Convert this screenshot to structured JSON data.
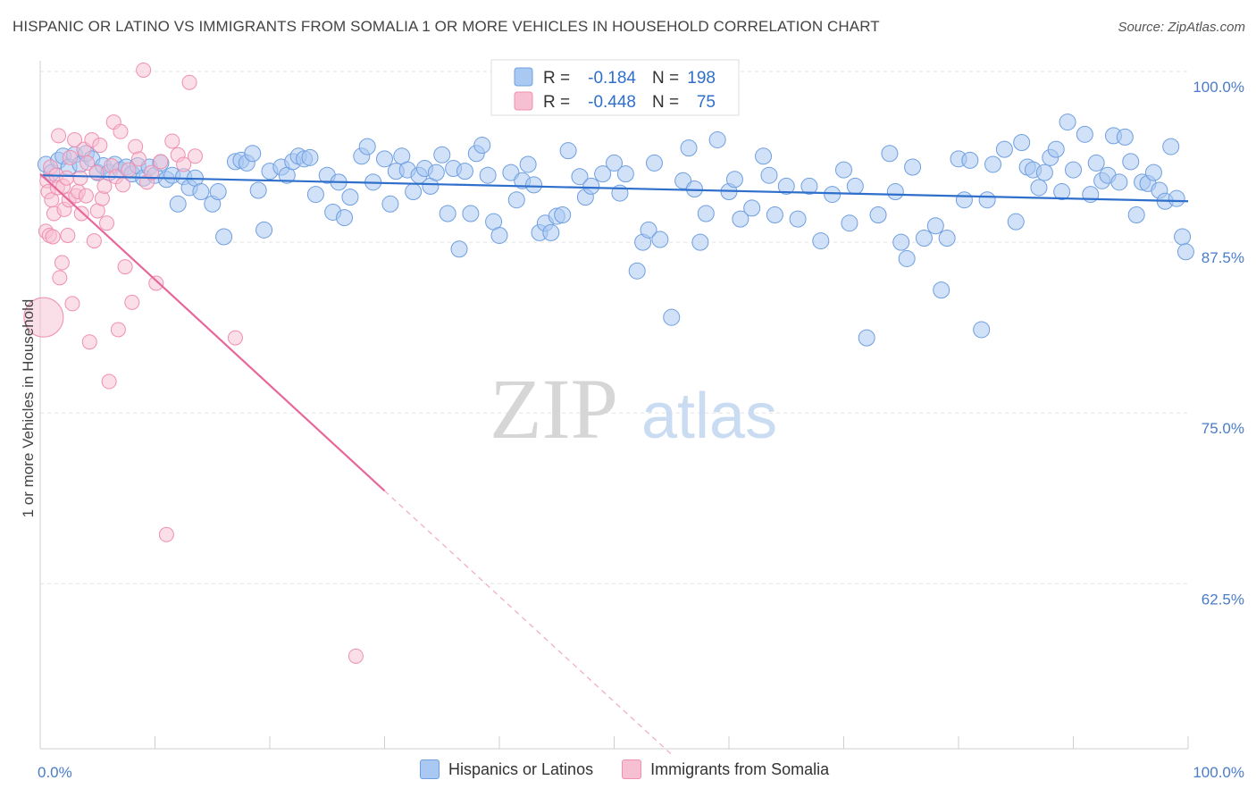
{
  "title": "HISPANIC OR LATINO VS IMMIGRANTS FROM SOMALIA 1 OR MORE VEHICLES IN HOUSEHOLD CORRELATION CHART",
  "source": "Source: ZipAtlas.com",
  "watermark": {
    "zip": "ZIP",
    "atlas": "atlas"
  },
  "colors": {
    "blue": "#6f9fe0",
    "blue_fill": "#a9c8f2",
    "blue_line": "#2f6fcc",
    "pink": "#f08fb0",
    "pink_fill": "#f7bfd2",
    "pink_line": "#e8679a",
    "axis_text": "#4a7cc9"
  },
  "legend": {
    "r_label": "R =",
    "n_label": "N =",
    "rows": [
      {
        "r": "-0.184",
        "n": "198"
      },
      {
        "r": "-0.448",
        "n": "75"
      }
    ]
  },
  "bottom_legend": [
    "Hispanics or Latinos",
    "Immigrants from Somalia"
  ],
  "chart_data": {
    "type": "scatter",
    "title": "HISPANIC OR LATINO VS IMMIGRANTS FROM SOMALIA 1 OR MORE VEHICLES IN HOUSEHOLD CORRELATION CHART",
    "xlabel": "",
    "ylabel": "1 or more Vehicles in Household",
    "xlim": [
      0,
      100
    ],
    "ylim": [
      50,
      101
    ],
    "x_tick_labels": [
      "0.0%",
      "100.0%"
    ],
    "y_ticks": [
      100.0,
      87.5,
      75.0,
      62.5
    ],
    "y_tick_labels": [
      "100.0%",
      "87.5%",
      "75.0%",
      "62.5%"
    ],
    "grid": true,
    "legend_position": "top-center",
    "series": [
      {
        "name": "Hispanics or Latinos",
        "R": -0.184,
        "N": 198,
        "trend": {
          "x": [
            0,
            100
          ],
          "y": [
            92.4,
            90.5
          ]
        },
        "points": [
          [
            0.5,
            93.2
          ],
          [
            1.0,
            92.6
          ],
          [
            1.6,
            93.5
          ],
          [
            2.0,
            93.8
          ],
          [
            2.5,
            93.0
          ],
          [
            3.0,
            93.9
          ],
          [
            3.5,
            93.2
          ],
          [
            4.0,
            94.0
          ],
          [
            4.5,
            93.6
          ],
          [
            5.0,
            92.6
          ],
          [
            5.5,
            93.1
          ],
          [
            6.0,
            92.6
          ],
          [
            6.5,
            93.2
          ],
          [
            7.0,
            92.8
          ],
          [
            7.5,
            93.0
          ],
          [
            8.0,
            92.5
          ],
          [
            8.5,
            93.1
          ],
          [
            9.0,
            92.2
          ],
          [
            9.5,
            93.0
          ],
          [
            10.0,
            92.4
          ],
          [
            10.5,
            93.3
          ],
          [
            11.0,
            92.1
          ],
          [
            11.5,
            92.4
          ],
          [
            12.0,
            90.3
          ],
          [
            12.5,
            92.3
          ],
          [
            13.0,
            91.5
          ],
          [
            13.5,
            92.2
          ],
          [
            14.0,
            91.2
          ],
          [
            15.0,
            90.3
          ],
          [
            15.5,
            91.2
          ],
          [
            16.0,
            87.9
          ],
          [
            17.0,
            93.4
          ],
          [
            17.5,
            93.5
          ],
          [
            18.0,
            93.3
          ],
          [
            18.5,
            94.0
          ],
          [
            19.0,
            91.3
          ],
          [
            19.5,
            88.4
          ],
          [
            20.0,
            92.7
          ],
          [
            21.0,
            93.0
          ],
          [
            21.5,
            92.4
          ],
          [
            22.0,
            93.4
          ],
          [
            22.5,
            93.8
          ],
          [
            23.0,
            93.6
          ],
          [
            23.5,
            93.7
          ],
          [
            24.0,
            91.0
          ],
          [
            25.0,
            92.4
          ],
          [
            25.5,
            89.7
          ],
          [
            26.0,
            91.9
          ],
          [
            26.5,
            89.3
          ],
          [
            27.0,
            90.8
          ],
          [
            28.0,
            93.8
          ],
          [
            28.5,
            94.5
          ],
          [
            29.0,
            91.9
          ],
          [
            30.0,
            93.6
          ],
          [
            30.5,
            90.3
          ],
          [
            31.0,
            92.7
          ],
          [
            31.5,
            93.8
          ],
          [
            32.0,
            92.8
          ],
          [
            32.5,
            91.2
          ],
          [
            33.0,
            92.4
          ],
          [
            33.5,
            92.9
          ],
          [
            34.0,
            91.6
          ],
          [
            34.5,
            92.6
          ],
          [
            35.0,
            93.9
          ],
          [
            35.5,
            89.6
          ],
          [
            36.0,
            92.9
          ],
          [
            36.5,
            87.0
          ],
          [
            37.0,
            92.7
          ],
          [
            37.5,
            89.6
          ],
          [
            38.0,
            94.0
          ],
          [
            38.5,
            94.6
          ],
          [
            39.0,
            92.4
          ],
          [
            39.5,
            89.0
          ],
          [
            40.0,
            88.0
          ],
          [
            41.0,
            92.6
          ],
          [
            41.5,
            90.6
          ],
          [
            42.0,
            92.0
          ],
          [
            42.5,
            93.2
          ],
          [
            43.0,
            91.7
          ],
          [
            43.5,
            88.2
          ],
          [
            44.0,
            88.9
          ],
          [
            44.5,
            88.2
          ],
          [
            45.0,
            89.4
          ],
          [
            45.5,
            89.5
          ],
          [
            46.0,
            94.2
          ],
          [
            47.0,
            92.3
          ],
          [
            47.5,
            90.8
          ],
          [
            48.0,
            91.6
          ],
          [
            49.0,
            92.5
          ],
          [
            50.0,
            93.3
          ],
          [
            50.5,
            91.1
          ],
          [
            51.0,
            92.5
          ],
          [
            52.0,
            85.4
          ],
          [
            52.5,
            87.5
          ],
          [
            53.0,
            88.4
          ],
          [
            53.5,
            93.3
          ],
          [
            54.0,
            87.7
          ],
          [
            55.0,
            82.0
          ],
          [
            56.0,
            92.0
          ],
          [
            56.5,
            94.4
          ],
          [
            57.0,
            91.4
          ],
          [
            57.5,
            87.5
          ],
          [
            58.0,
            89.6
          ],
          [
            59.0,
            95.0
          ],
          [
            60.0,
            91.2
          ],
          [
            60.5,
            92.1
          ],
          [
            61.0,
            89.2
          ],
          [
            62.0,
            90.0
          ],
          [
            63.0,
            93.8
          ],
          [
            63.5,
            92.4
          ],
          [
            64.0,
            89.5
          ],
          [
            65.0,
            91.6
          ],
          [
            66.0,
            89.2
          ],
          [
            67.0,
            91.6
          ],
          [
            68.0,
            87.6
          ],
          [
            69.0,
            91.0
          ],
          [
            70.0,
            92.8
          ],
          [
            70.5,
            88.9
          ],
          [
            71.0,
            91.6
          ],
          [
            72.0,
            80.5
          ],
          [
            73.0,
            89.5
          ],
          [
            74.0,
            94.0
          ],
          [
            74.5,
            91.2
          ],
          [
            75.0,
            87.5
          ],
          [
            75.5,
            86.3
          ],
          [
            76.0,
            93.0
          ],
          [
            77.0,
            87.8
          ],
          [
            78.0,
            88.7
          ],
          [
            78.5,
            84.0
          ],
          [
            79.0,
            87.8
          ],
          [
            80.0,
            93.6
          ],
          [
            80.5,
            90.6
          ],
          [
            81.0,
            93.5
          ],
          [
            82.0,
            81.1
          ],
          [
            82.5,
            90.6
          ],
          [
            83.0,
            93.2
          ],
          [
            84.0,
            94.3
          ],
          [
            85.0,
            89.0
          ],
          [
            85.5,
            94.8
          ],
          [
            86.0,
            93.0
          ],
          [
            86.5,
            92.8
          ],
          [
            87.0,
            91.5
          ],
          [
            87.5,
            92.6
          ],
          [
            88.0,
            93.7
          ],
          [
            88.5,
            94.3
          ],
          [
            89.0,
            91.2
          ],
          [
            89.5,
            96.3
          ],
          [
            90.0,
            92.8
          ],
          [
            91.0,
            95.4
          ],
          [
            91.5,
            91.0
          ],
          [
            92.0,
            93.3
          ],
          [
            92.5,
            92.0
          ],
          [
            93.0,
            92.4
          ],
          [
            93.5,
            95.3
          ],
          [
            94.0,
            91.9
          ],
          [
            94.5,
            95.2
          ],
          [
            95.0,
            93.4
          ],
          [
            95.5,
            89.5
          ],
          [
            96.0,
            91.9
          ],
          [
            96.5,
            91.8
          ],
          [
            97.0,
            92.6
          ],
          [
            97.5,
            91.3
          ],
          [
            98.0,
            90.5
          ],
          [
            98.5,
            94.5
          ],
          [
            99.0,
            90.7
          ],
          [
            99.5,
            87.9
          ],
          [
            99.8,
            86.8
          ]
        ]
      },
      {
        "name": "Immigrants from Somalia",
        "R": -0.448,
        "N": 75,
        "trend": {
          "x": [
            0,
            30
          ],
          "y": [
            92.5,
            69.3
          ],
          "dashed_to": {
            "x": 55,
            "y": 50
          }
        },
        "points": [
          [
            0.3,
            82.0
          ],
          [
            0.5,
            88.3
          ],
          [
            0.6,
            92.0
          ],
          [
            0.7,
            91.2
          ],
          [
            0.8,
            88.0
          ],
          [
            0.9,
            93.0
          ],
          [
            1.0,
            90.6
          ],
          [
            1.1,
            87.9
          ],
          [
            1.2,
            89.6
          ],
          [
            1.4,
            92.4
          ],
          [
            1.5,
            91.5
          ],
          [
            1.6,
            95.3
          ],
          [
            1.7,
            84.9
          ],
          [
            1.9,
            86.0
          ],
          [
            2.0,
            91.6
          ],
          [
            2.1,
            89.9
          ],
          [
            2.3,
            92.2
          ],
          [
            2.4,
            88.0
          ],
          [
            2.5,
            90.6
          ],
          [
            2.6,
            93.7
          ],
          [
            2.8,
            83.0
          ],
          [
            3.0,
            95.0
          ],
          [
            3.1,
            90.9
          ],
          [
            3.3,
            91.2
          ],
          [
            3.5,
            92.2
          ],
          [
            3.6,
            89.6
          ],
          [
            3.8,
            94.3
          ],
          [
            4.0,
            90.9
          ],
          [
            4.1,
            93.3
          ],
          [
            4.3,
            80.2
          ],
          [
            4.5,
            95.0
          ],
          [
            4.7,
            87.6
          ],
          [
            4.9,
            92.6
          ],
          [
            5.0,
            89.8
          ],
          [
            5.2,
            94.6
          ],
          [
            5.4,
            90.7
          ],
          [
            5.6,
            91.6
          ],
          [
            5.8,
            88.9
          ],
          [
            6.0,
            77.3
          ],
          [
            6.2,
            93.1
          ],
          [
            6.4,
            96.3
          ],
          [
            6.6,
            92.3
          ],
          [
            6.8,
            81.1
          ],
          [
            7.0,
            95.6
          ],
          [
            7.2,
            91.7
          ],
          [
            7.4,
            85.7
          ],
          [
            7.7,
            92.8
          ],
          [
            8.0,
            83.1
          ],
          [
            8.3,
            94.5
          ],
          [
            8.6,
            93.6
          ],
          [
            9.0,
            100.1
          ],
          [
            9.3,
            91.9
          ],
          [
            9.7,
            92.6
          ],
          [
            10.1,
            84.5
          ],
          [
            10.5,
            93.4
          ],
          [
            11.0,
            66.1
          ],
          [
            11.5,
            94.9
          ],
          [
            12.0,
            93.9
          ],
          [
            12.5,
            93.2
          ],
          [
            13.0,
            99.2
          ],
          [
            13.5,
            93.8
          ],
          [
            17.0,
            80.5
          ],
          [
            27.5,
            57.2
          ]
        ]
      }
    ]
  }
}
